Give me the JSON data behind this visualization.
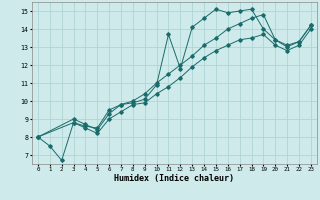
{
  "xlabel": "Humidex (Indice chaleur)",
  "bg_color": "#ceeaea",
  "grid_color": "#afd4d4",
  "line_color": "#1a6b6b",
  "xlim": [
    -0.5,
    23.5
  ],
  "ylim": [
    6.5,
    15.5
  ],
  "yticks": [
    7,
    8,
    9,
    10,
    11,
    12,
    13,
    14,
    15
  ],
  "xticks": [
    0,
    1,
    2,
    3,
    4,
    5,
    6,
    7,
    8,
    9,
    10,
    11,
    12,
    13,
    14,
    15,
    16,
    17,
    18,
    19,
    20,
    21,
    22,
    23
  ],
  "line1_x": [
    0,
    1,
    2,
    3,
    4,
    5,
    6,
    7,
    8,
    9,
    10,
    11,
    12,
    13,
    14,
    15,
    16,
    17,
    18,
    19,
    20,
    21,
    22,
    23
  ],
  "line1_y": [
    8.0,
    7.5,
    6.7,
    8.8,
    8.6,
    8.5,
    9.5,
    9.8,
    9.9,
    10.1,
    10.9,
    13.7,
    11.8,
    14.1,
    14.6,
    15.1,
    14.9,
    15.0,
    15.1,
    14.0,
    13.4,
    13.0,
    13.3,
    14.2
  ],
  "line2_x": [
    0,
    3,
    4,
    5,
    6,
    7,
    8,
    9,
    10,
    11,
    12,
    13,
    14,
    15,
    16,
    17,
    18,
    19,
    20,
    21,
    22,
    23
  ],
  "line2_y": [
    8.0,
    9.0,
    8.7,
    8.4,
    9.3,
    9.8,
    10.0,
    10.4,
    11.0,
    11.5,
    12.0,
    12.5,
    13.1,
    13.5,
    14.0,
    14.3,
    14.6,
    14.8,
    13.4,
    13.1,
    13.3,
    14.2
  ],
  "line3_x": [
    0,
    3,
    4,
    5,
    6,
    7,
    8,
    9,
    10,
    11,
    12,
    13,
    14,
    15,
    16,
    17,
    18,
    19,
    20,
    21,
    22,
    23
  ],
  "line3_y": [
    8.0,
    8.8,
    8.5,
    8.2,
    9.0,
    9.4,
    9.8,
    9.9,
    10.4,
    10.8,
    11.3,
    11.9,
    12.4,
    12.8,
    13.1,
    13.4,
    13.5,
    13.7,
    13.1,
    12.8,
    13.1,
    14.0
  ]
}
